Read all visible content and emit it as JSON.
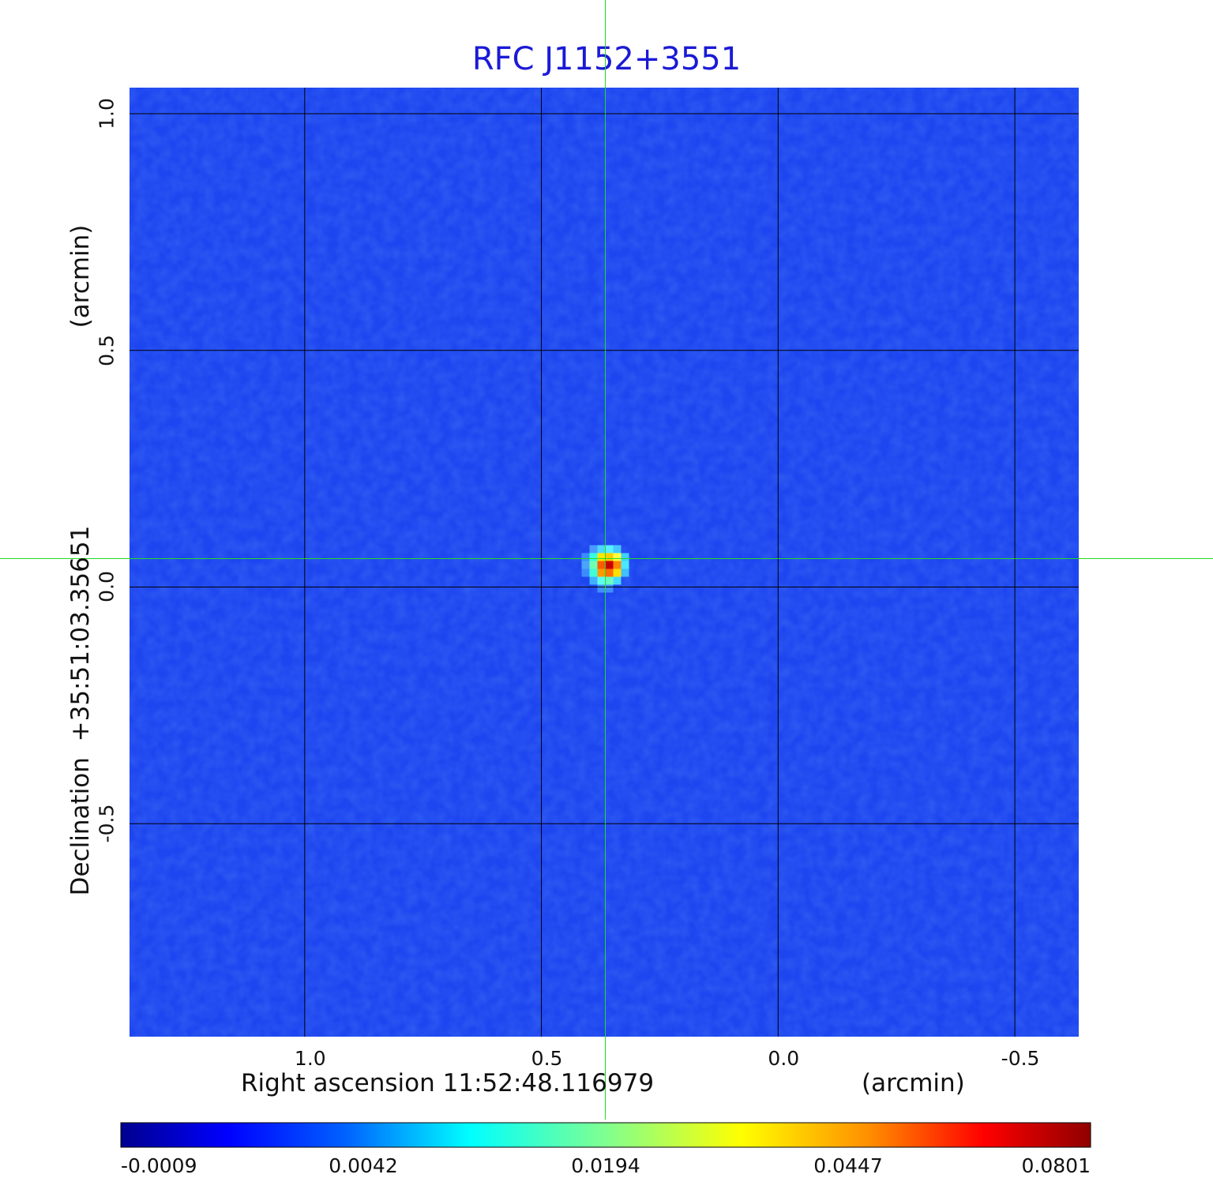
{
  "chart_data": {
    "type": "heatmap",
    "title": "RFC J1152+3551",
    "xlabel": "Right ascension  11:52:48.116979",
    "xunit": "(arcmin)",
    "ylabel": "Declination  +35:51:03.35651",
    "yunit": "(arcmin)",
    "x_ticks": [
      "1.0",
      "0.5",
      "0.0",
      "-0.5"
    ],
    "y_ticks": [
      "1.0",
      "0.5",
      "0.0",
      "-0.5"
    ],
    "x_tick_values": [
      1.0,
      0.5,
      0.0,
      -0.5
    ],
    "y_tick_values": [
      1.0,
      0.5,
      0.0,
      -0.5
    ],
    "xlim": [
      1.37,
      -0.635
    ],
    "ylim": [
      -0.95,
      1.055
    ],
    "grid": true,
    "crosshair": {
      "x": 0.365,
      "y": 0.06
    },
    "source_peak": {
      "x": 0.365,
      "y": 0.055,
      "value": 0.0801
    },
    "colorscale": "jet",
    "colorbar_ticks": [
      "-0.0009",
      "0.0042",
      "0.0194",
      "0.0447",
      "0.0801"
    ],
    "colors": {
      "title": "#1a1ad6",
      "crosshair": "#22dd22",
      "grid": "#000000",
      "background_pixel": "#1e46f0"
    }
  }
}
